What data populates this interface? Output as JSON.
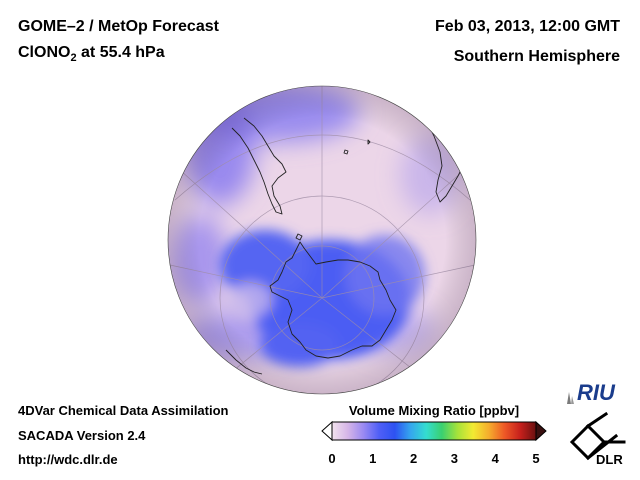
{
  "header": {
    "product_title": "GOME–2 / MetOp Forecast",
    "species_prefix": "ClONO",
    "species_subscript": "2",
    "species_suffix": " at 55.4 hPa",
    "date_time": "Feb 03, 2013, 12:00 GMT",
    "region": "Southern Hemisphere"
  },
  "footer": {
    "assimilation": "4DVar Chemical Data Assimilation",
    "version": "SACADA Version 2.4",
    "url": "http://wdc.dlr.de"
  },
  "colorbar": {
    "title": "Volume Mixing Ratio [ppbv]",
    "ticks": [
      "0",
      "1",
      "2",
      "3",
      "4",
      "5"
    ],
    "min": 0,
    "max": 5,
    "colors": [
      "#f2e3ee",
      "#d6b6e8",
      "#9a8af2",
      "#4f5ff6",
      "#2d52f2",
      "#35a6ee",
      "#34ddd0",
      "#3ad070",
      "#a6e23a",
      "#f2ea32",
      "#f5ad2d",
      "#ee5826",
      "#c6201c",
      "#6a1010"
    ]
  },
  "logos": {
    "riu": "RIU",
    "dlr": "DLR"
  },
  "map": {
    "projection": "orthographic, south pole centered",
    "background_color": "#e9d2e6",
    "low_color": "#4a5cf2"
  }
}
